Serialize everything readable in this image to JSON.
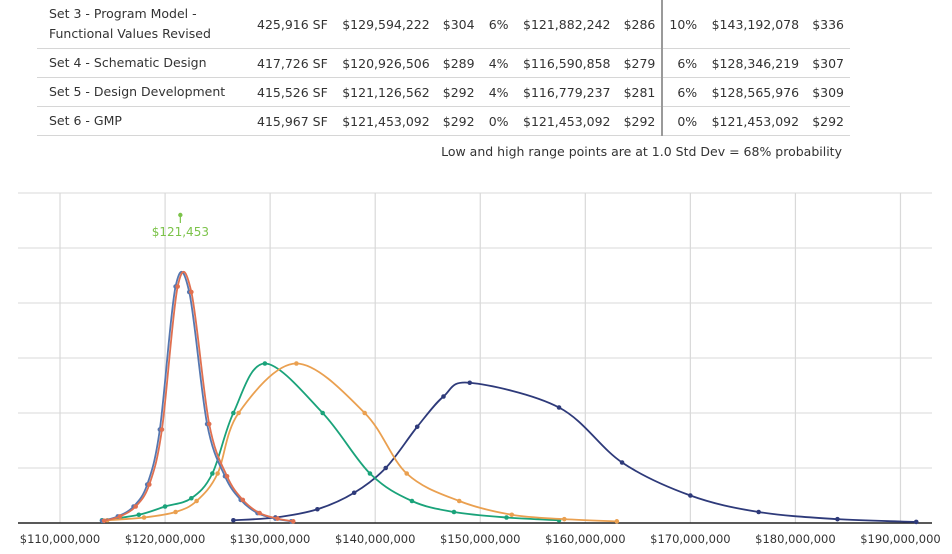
{
  "table": {
    "rows": [
      {
        "label": "Set 3 - Program Model - Functional Values Revised",
        "sf": "425,916 SF",
        "expected": "$129,594,222",
        "expected_psf": "$304",
        "low_pct": "6%",
        "low": "$121,882,242",
        "low_psf": "$286",
        "high_pct": "10%",
        "high": "$143,192,078",
        "high_psf": "$336"
      },
      {
        "label": "Set 4 - Schematic Design",
        "sf": "417,726 SF",
        "expected": "$120,926,506",
        "expected_psf": "$289",
        "low_pct": "4%",
        "low": "$116,590,858",
        "low_psf": "$279",
        "high_pct": "6%",
        "high": "$128,346,219",
        "high_psf": "$307"
      },
      {
        "label": "Set 5 - Design Development",
        "sf": "415,526 SF",
        "expected": "$121,126,562",
        "expected_psf": "$292",
        "low_pct": "4%",
        "low": "$116,779,237",
        "low_psf": "$281",
        "high_pct": "6%",
        "high": "$128,565,976",
        "high_psf": "$309"
      },
      {
        "label": "Set 6 - GMP",
        "sf": "415,967 SF",
        "expected": "$121,453,092",
        "expected_psf": "$292",
        "low_pct": "0%",
        "low": "$121,453,092",
        "low_psf": "$292",
        "high_pct": "0%",
        "high": "$121,453,092",
        "high_psf": "$292"
      }
    ],
    "footnote": "Low and high range points are at 1.0 Std Dev = 68% probability"
  },
  "chart_data": {
    "type": "line",
    "x_ticks": [
      110000000,
      120000000,
      130000000,
      140000000,
      150000000,
      160000000,
      170000000,
      180000000,
      190000000
    ],
    "x_tick_labels": [
      "$110,000,000",
      "$120,000,000",
      "$130,000,000",
      "$140,000,000",
      "$150,000,000",
      "$160,000,000",
      "$170,000,000",
      "$180,000,000",
      "$190,000,000"
    ],
    "xlim": [
      106000000,
      193000000
    ],
    "ylim": [
      0,
      6
    ],
    "grid": true,
    "series": [
      {
        "color": "#2e3a7a",
        "points": [
          [
            126500000,
            0.05
          ],
          [
            130500000,
            0.1
          ],
          [
            134500000,
            0.25
          ],
          [
            138000000,
            0.55
          ],
          [
            141000000,
            1.0
          ],
          [
            144000000,
            1.75
          ],
          [
            146500000,
            2.3
          ],
          [
            149000000,
            2.55
          ],
          [
            157500000,
            2.1
          ],
          [
            163500000,
            1.1
          ],
          [
            170000000,
            0.5
          ],
          [
            176500000,
            0.2
          ],
          [
            184000000,
            0.07
          ],
          [
            191500000,
            0.02
          ]
        ]
      },
      {
        "color": "#1aa37a",
        "points": [
          [
            114000000,
            0.05
          ],
          [
            117500000,
            0.15
          ],
          [
            120000000,
            0.3
          ],
          [
            122500000,
            0.45
          ],
          [
            124500000,
            0.9
          ],
          [
            126500000,
            2.0
          ],
          [
            129500000,
            2.9
          ],
          [
            135000000,
            2.0
          ],
          [
            139500000,
            0.9
          ],
          [
            143500000,
            0.4
          ],
          [
            147500000,
            0.2
          ],
          [
            152500000,
            0.1
          ],
          [
            157500000,
            0.05
          ]
        ]
      },
      {
        "color": "#eaa050",
        "points": [
          [
            114500000,
            0.05
          ],
          [
            118000000,
            0.1
          ],
          [
            121000000,
            0.2
          ],
          [
            123000000,
            0.4
          ],
          [
            125000000,
            0.9
          ],
          [
            127000000,
            2.0
          ],
          [
            132500000,
            2.9
          ],
          [
            139000000,
            2.0
          ],
          [
            143000000,
            0.9
          ],
          [
            148000000,
            0.4
          ],
          [
            153000000,
            0.15
          ],
          [
            158000000,
            0.07
          ],
          [
            163000000,
            0.03
          ]
        ]
      },
      {
        "color": "#5577b0",
        "points": [
          [
            114000000,
            0.04
          ],
          [
            115500000,
            0.12
          ],
          [
            117000000,
            0.3
          ],
          [
            118300000,
            0.7
          ],
          [
            119500000,
            1.7
          ],
          [
            121000000,
            4.3
          ],
          [
            122300000,
            4.2
          ],
          [
            124000000,
            1.8
          ],
          [
            125700000,
            0.85
          ],
          [
            127200000,
            0.42
          ],
          [
            128800000,
            0.18
          ],
          [
            130500000,
            0.08
          ],
          [
            132000000,
            0.03
          ]
        ]
      },
      {
        "color": "#e07050",
        "points": [
          [
            114200000,
            0.04
          ],
          [
            115700000,
            0.12
          ],
          [
            117200000,
            0.3
          ],
          [
            118500000,
            0.7
          ],
          [
            119700000,
            1.7
          ],
          [
            121200000,
            4.3
          ],
          [
            122500000,
            4.2
          ],
          [
            124200000,
            1.8
          ],
          [
            125900000,
            0.85
          ],
          [
            127400000,
            0.42
          ],
          [
            129000000,
            0.18
          ],
          [
            130700000,
            0.08
          ],
          [
            132200000,
            0.03
          ]
        ]
      }
    ],
    "annotations": [
      {
        "label": "$121,453",
        "x": 121453092,
        "y": 5.6,
        "color": "#7cc34a"
      }
    ]
  }
}
